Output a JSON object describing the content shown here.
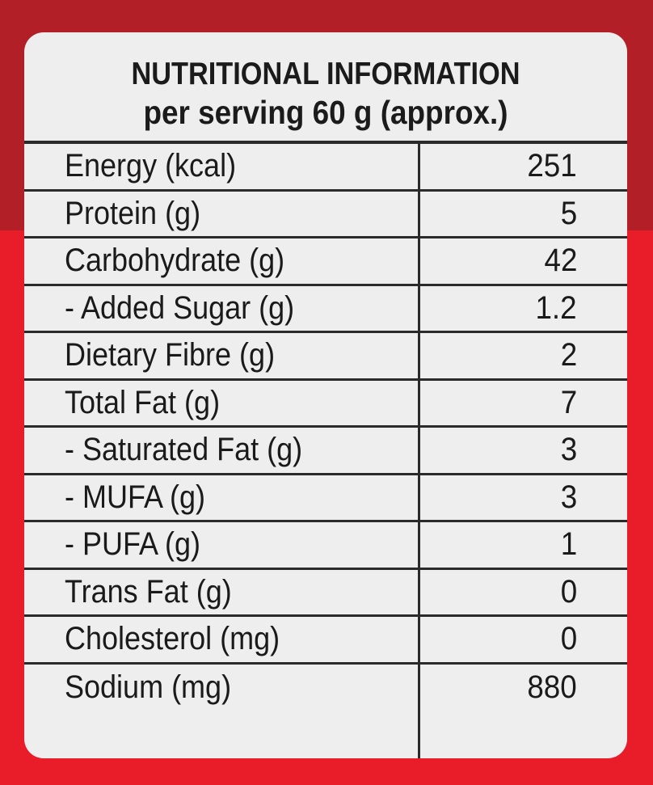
{
  "label": {
    "title": "NUTRITIONAL INFORMATION",
    "subtitle": "per serving 60 g (approx.)",
    "rows": [
      {
        "nutrient": "Energy (kcal)",
        "amount": "251"
      },
      {
        "nutrient": "Protein (g)",
        "amount": "5"
      },
      {
        "nutrient": "Carbohydrate (g)",
        "amount": "42"
      },
      {
        "nutrient": "- Added Sugar (g)",
        "amount": "1.2"
      },
      {
        "nutrient": "Dietary Fibre (g)",
        "amount": "2"
      },
      {
        "nutrient": "Total Fat (g)",
        "amount": "7"
      },
      {
        "nutrient": "- Saturated Fat (g)",
        "amount": "3"
      },
      {
        "nutrient": "- MUFA (g)",
        "amount": "3"
      },
      {
        "nutrient": "- PUFA (g)",
        "amount": "1"
      },
      {
        "nutrient": "Trans Fat (g)",
        "amount": "0"
      },
      {
        "nutrient": "Cholesterol (mg)",
        "amount": "0"
      },
      {
        "nutrient": "Sodium (mg)",
        "amount": "880"
      }
    ]
  },
  "colors": {
    "packaging_top": "#b21f26",
    "packaging_bottom": "#e91c29",
    "label_background": "#eeeeef",
    "text": "#1a1a1a"
  }
}
